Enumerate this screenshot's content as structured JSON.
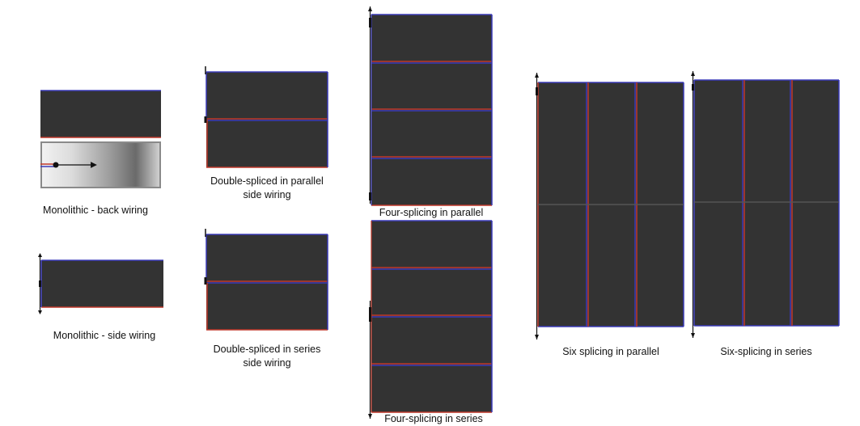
{
  "captions": {
    "mono_back": "Monolithic - back wiring",
    "mono_side": "Monolithic - side wiring",
    "double_parallel_line1": "Double-spliced in parallel",
    "double_parallel_line2": "side wiring",
    "double_series_line1": "Double-spliced in series",
    "double_series_line2": "side wiring",
    "four_parallel": "Four-splicing in parallel",
    "four_series": "Four-splicing in series",
    "six_parallel": "Six splicing in parallel",
    "six_series": "Six-splicing in series"
  },
  "colors": {
    "panel": "#333333",
    "positive_wire": "#c0392b",
    "negative_wire": "#3b3bb8",
    "seam": "#555555",
    "terminal": "#111111"
  }
}
